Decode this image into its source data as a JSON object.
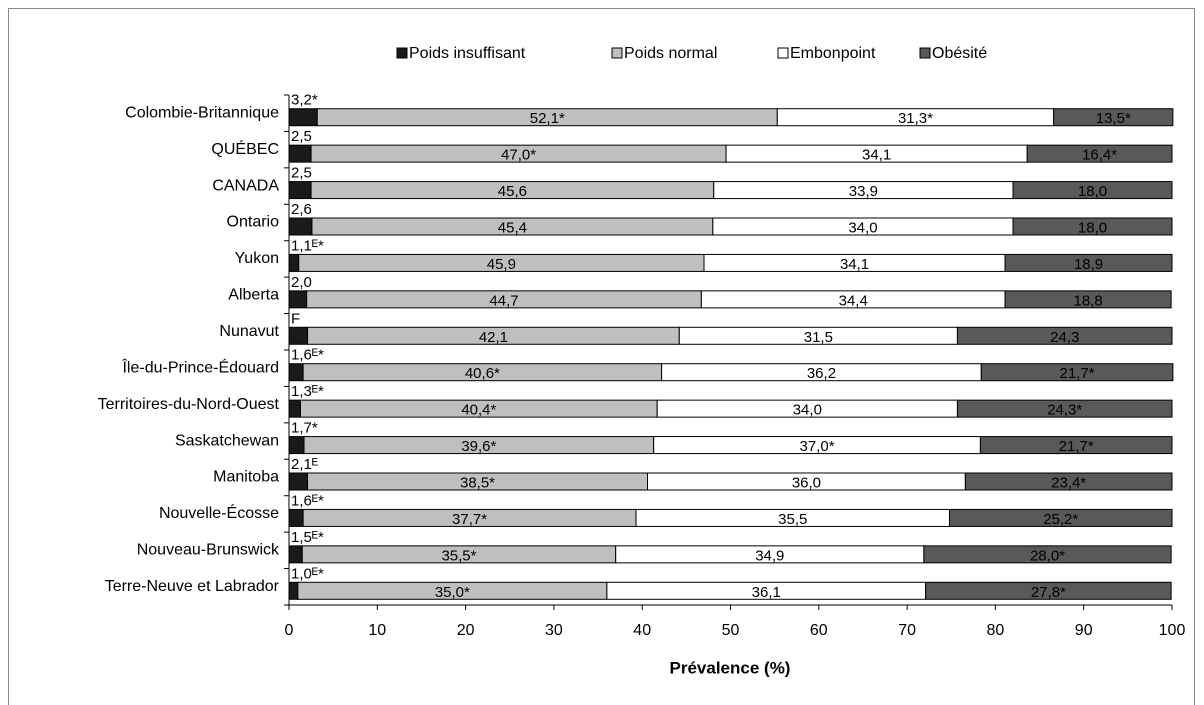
{
  "chart_data": {
    "type": "stacked-bar-horizontal",
    "x_label": "Prévalence (%)",
    "categories": [
      "Colombie-Britannique",
      "QUÉBEC",
      "CANADA",
      "Ontario",
      "Yukon",
      "Alberta",
      "Nunavut",
      "Île-du-Prince-Édouard",
      "Territoires-du-Nord-Ouest",
      "Saskatchewan",
      "Manitoba",
      "Nouvelle-Écosse",
      "Nouveau-Brunswick",
      "Terre-Neuve et Labrador"
    ],
    "series": [
      {
        "name": "Poids insuffisant",
        "color": "#1a1a1a",
        "values": [
          3.2,
          2.5,
          2.5,
          2.6,
          1.1,
          2.0,
          2.1,
          1.6,
          1.3,
          1.7,
          2.1,
          1.6,
          1.5,
          1.0
        ],
        "value_labels": [
          "3,2*",
          "2,5",
          "2,5",
          "2,6",
          "1,1ᴱ*",
          "2,0",
          "F",
          "1,6ᴱ*",
          "1,3ᴱ*",
          "1,7*",
          "2,1ᴱ",
          "1,6ᴱ*",
          "1,5ᴱ*",
          "1,0ᴱ*"
        ]
      },
      {
        "name": "Poids normal",
        "color": "#bfbfbf",
        "values": [
          52.1,
          47.0,
          45.6,
          45.4,
          45.9,
          44.7,
          42.1,
          40.6,
          40.4,
          39.6,
          38.5,
          37.7,
          35.5,
          35.0
        ],
        "value_labels": [
          "52,1*",
          "47,0*",
          "45,6",
          "45,4",
          "45,9",
          "44,7",
          "42,1",
          "40,6*",
          "40,4*",
          "39,6*",
          "38,5*",
          "37,7*",
          "35,5*",
          "35,0*"
        ]
      },
      {
        "name": "Embonpoint",
        "color": "#ffffff",
        "values": [
          31.3,
          34.1,
          33.9,
          34.0,
          34.1,
          34.4,
          31.5,
          36.2,
          34.0,
          37.0,
          36.0,
          35.5,
          34.9,
          36.1
        ],
        "value_labels": [
          "31,3*",
          "34,1",
          "33,9",
          "34,0",
          "34,1",
          "34,4",
          "31,5",
          "36,2",
          "34,0",
          "37,0*",
          "36,0",
          "35,5",
          "34,9",
          "36,1"
        ]
      },
      {
        "name": "Obésité",
        "color": "#595959",
        "values": [
          13.5,
          16.4,
          18.0,
          18.0,
          18.9,
          18.8,
          24.3,
          21.7,
          24.3,
          21.7,
          23.4,
          25.2,
          28.0,
          27.8
        ],
        "value_labels": [
          "13,5*",
          "16,4*",
          "18,0",
          "18,0",
          "18,9",
          "18,8",
          "24,3",
          "21,7*",
          "24,3*",
          "21,7*",
          "23,4*",
          "25,2*",
          "28,0*",
          "27,8*"
        ]
      }
    ],
    "xlim": [
      0,
      100
    ],
    "xticks": [
      0,
      10,
      20,
      30,
      40,
      50,
      60,
      70,
      80,
      90,
      100
    ],
    "legend": "top"
  }
}
